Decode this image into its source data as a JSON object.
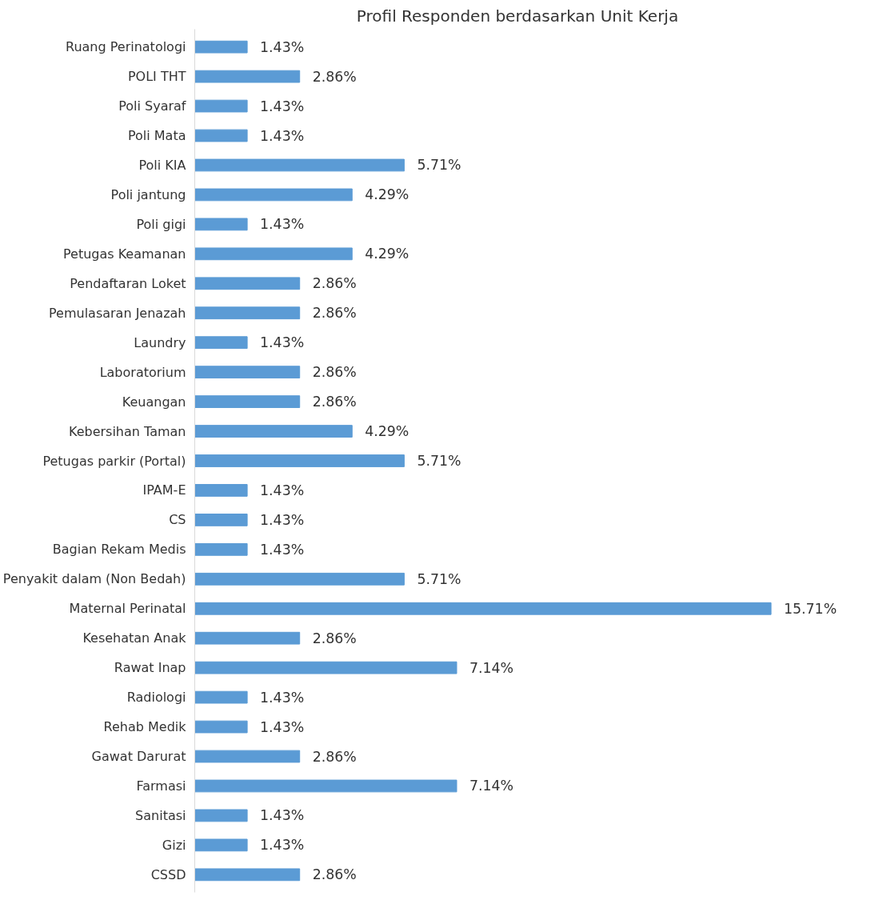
{
  "chart_data": {
    "type": "bar",
    "orientation": "horizontal",
    "title": "Profil Responden berdasarkan Unit Kerja",
    "categories": [
      "Ruang Perinatologi",
      "POLI THT",
      "Poli Syaraf",
      "Poli Mata",
      "Poli KIA",
      "Poli jantung",
      "Poli gigi",
      "Petugas Keamanan",
      "Pendaftaran Loket",
      "Pemulasaran Jenazah",
      "Laundry",
      "Laboratorium",
      "Keuangan",
      "Kebersihan Taman",
      "Petugas parkir (Portal)",
      "IPAM-E",
      "CS",
      "Bagian Rekam Medis",
      "Penyakit dalam (Non Bedah)",
      "Maternal Perinatal",
      "Kesehatan Anak",
      "Rawat Inap",
      "Radiologi",
      "Rehab Medik",
      "Gawat Darurat",
      "Farmasi",
      "Sanitasi",
      "Gizi",
      "CSSD"
    ],
    "values": [
      1.43,
      2.86,
      1.43,
      1.43,
      5.71,
      4.29,
      1.43,
      4.29,
      2.86,
      2.86,
      1.43,
      2.86,
      2.86,
      4.29,
      5.71,
      1.43,
      1.43,
      1.43,
      5.71,
      15.71,
      2.86,
      7.14,
      1.43,
      1.43,
      2.86,
      7.14,
      1.43,
      1.43,
      2.86
    ],
    "value_labels": [
      "1.43%",
      "2.86%",
      "1.43%",
      "1.43%",
      "5.71%",
      "4.29%",
      "1.43%",
      "4.29%",
      "2.86%",
      "2.86%",
      "1.43%",
      "2.86%",
      "2.86%",
      "4.29%",
      "5.71%",
      "1.43%",
      "1.43%",
      "1.43%",
      "5.71%",
      "15.71%",
      "2.86%",
      "7.14%",
      "1.43%",
      "1.43%",
      "2.86%",
      "7.14%",
      "1.43%",
      "1.43%",
      "2.86%"
    ],
    "color": "#5b9bd5",
    "grid": false
  }
}
